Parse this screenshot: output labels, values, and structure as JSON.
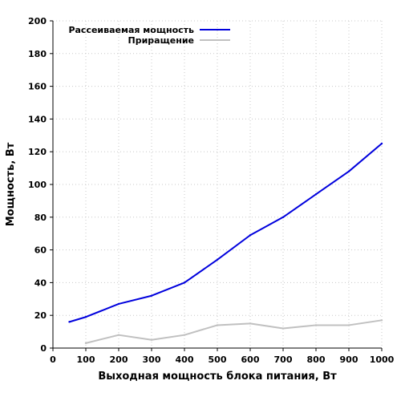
{
  "chart_data": {
    "type": "line",
    "xlabel": "Выходная мощность блока питания, Вт",
    "ylabel": "Мощность, Вт",
    "xlim": [
      0,
      1000
    ],
    "ylim": [
      0,
      200
    ],
    "x_ticks": [
      "0",
      "100",
      "200",
      "300",
      "400",
      "500",
      "600",
      "700",
      "800",
      "900",
      "1000"
    ],
    "y_ticks": [
      "0",
      "20",
      "40",
      "60",
      "80",
      "100",
      "120",
      "140",
      "160",
      "180",
      "200"
    ],
    "grid": true,
    "legend_position": "top-left",
    "series": [
      {
        "name": "Рассеиваемая мощность",
        "color": "#0000dd",
        "points": [
          {
            "x": 50,
            "y": 16
          },
          {
            "x": 100,
            "y": 19
          },
          {
            "x": 200,
            "y": 27
          },
          {
            "x": 300,
            "y": 32
          },
          {
            "x": 400,
            "y": 40
          },
          {
            "x": 500,
            "y": 54
          },
          {
            "x": 600,
            "y": 69
          },
          {
            "x": 700,
            "y": 80
          },
          {
            "x": 800,
            "y": 94
          },
          {
            "x": 900,
            "y": 108
          },
          {
            "x": 1000,
            "y": 125
          }
        ]
      },
      {
        "name": "Приращение",
        "color": "#c0c0c0",
        "points": [
          {
            "x": 100,
            "y": 3
          },
          {
            "x": 200,
            "y": 8
          },
          {
            "x": 300,
            "y": 5
          },
          {
            "x": 400,
            "y": 8
          },
          {
            "x": 500,
            "y": 14
          },
          {
            "x": 600,
            "y": 15
          },
          {
            "x": 700,
            "y": 12
          },
          {
            "x": 800,
            "y": 14
          },
          {
            "x": 900,
            "y": 14
          },
          {
            "x": 1000,
            "y": 17
          }
        ]
      }
    ]
  }
}
